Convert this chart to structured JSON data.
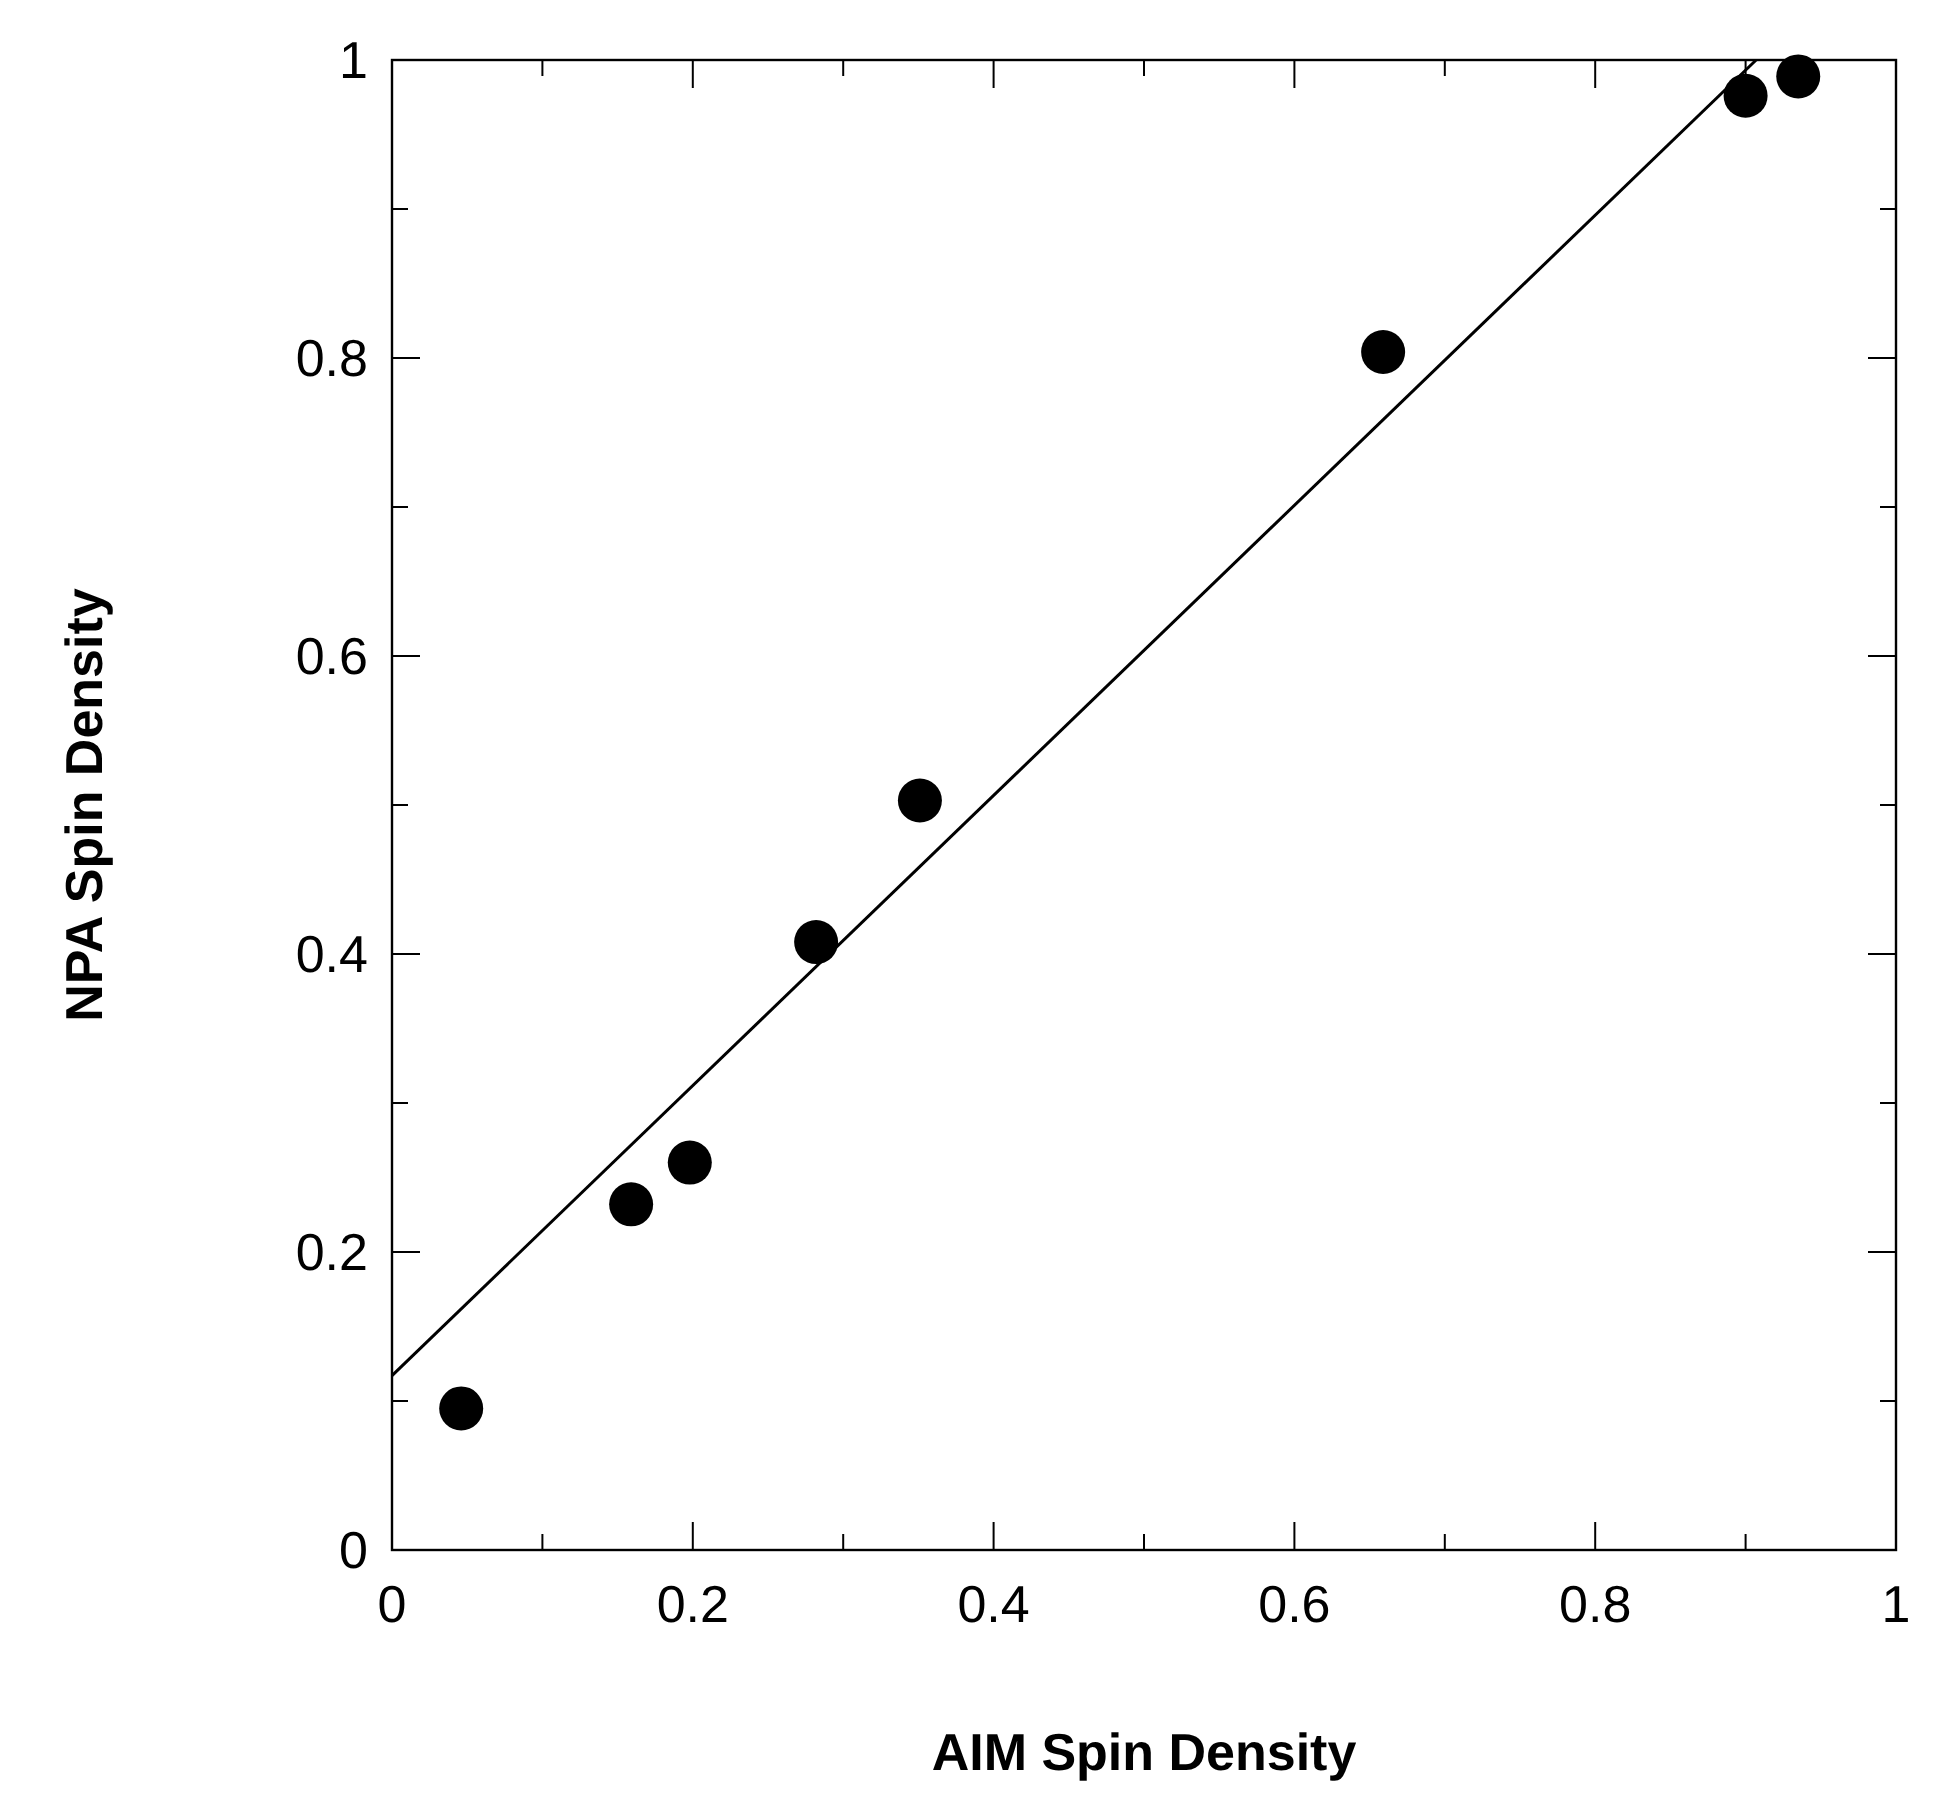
{
  "chart_data": {
    "type": "scatter",
    "xlabel": "AIM Spin Density",
    "ylabel": "NPA Spin Density",
    "xlim": [
      0,
      1
    ],
    "ylim": [
      0,
      1
    ],
    "xticks": [
      0,
      {
        "value": 0.1,
        "label": null
      },
      0.2,
      {
        "value": 0.3,
        "label": null
      },
      0.4,
      {
        "value": 0.5,
        "label": null
      },
      0.6,
      {
        "value": 0.7,
        "label": null
      },
      0.8,
      {
        "value": 0.9,
        "label": null
      },
      1
    ],
    "yticks": [
      0,
      {
        "value": 0.1,
        "label": null
      },
      0.2,
      {
        "value": 0.3,
        "label": null
      },
      0.4,
      {
        "value": 0.5,
        "label": null
      },
      0.6,
      {
        "value": 0.7,
        "label": null
      },
      0.8,
      {
        "value": 0.9,
        "label": null
      },
      1
    ],
    "grid": false,
    "marker": "circle",
    "series": [
      {
        "color": "#000000",
        "x": [
          0.046,
          0.159,
          0.198,
          0.282,
          0.351,
          0.659,
          0.9,
          0.935
        ],
        "values": [
          0.095,
          0.232,
          0.26,
          0.408,
          0.503,
          0.804,
          0.976,
          0.989
        ]
      },
      {
        "type": "line",
        "color": "#000000",
        "marker": "none",
        "line_style": "solid",
        "x": [
          0,
          0.907
        ],
        "values": [
          0.117,
          1
        ]
      }
    ]
  }
}
